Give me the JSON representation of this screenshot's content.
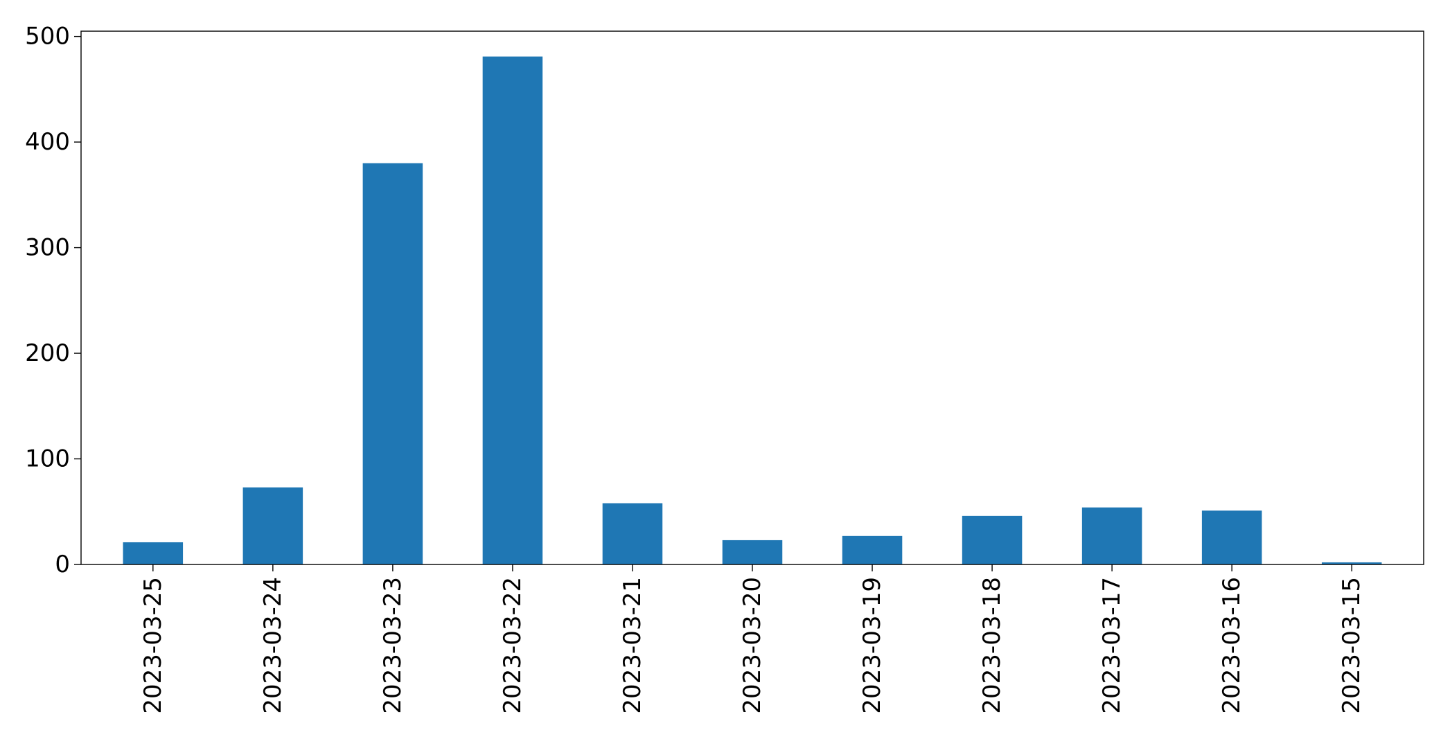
{
  "chart_data": {
    "type": "bar",
    "title": "",
    "xlabel": "",
    "ylabel": "",
    "categories": [
      "2023-03-25",
      "2023-03-24",
      "2023-03-23",
      "2023-03-22",
      "2023-03-21",
      "2023-03-20",
      "2023-03-19",
      "2023-03-18",
      "2023-03-17",
      "2023-03-16",
      "2023-03-15"
    ],
    "values": [
      21,
      73,
      380,
      481,
      58,
      23,
      27,
      46,
      54,
      51,
      2
    ],
    "ylim": [
      0,
      505
    ],
    "yticks": [
      0,
      100,
      200,
      300,
      400,
      500
    ],
    "grid": false,
    "legend": "none",
    "colors": {
      "bar": "#1f77b4",
      "axis": "#000000",
      "background": "#ffffff"
    }
  }
}
